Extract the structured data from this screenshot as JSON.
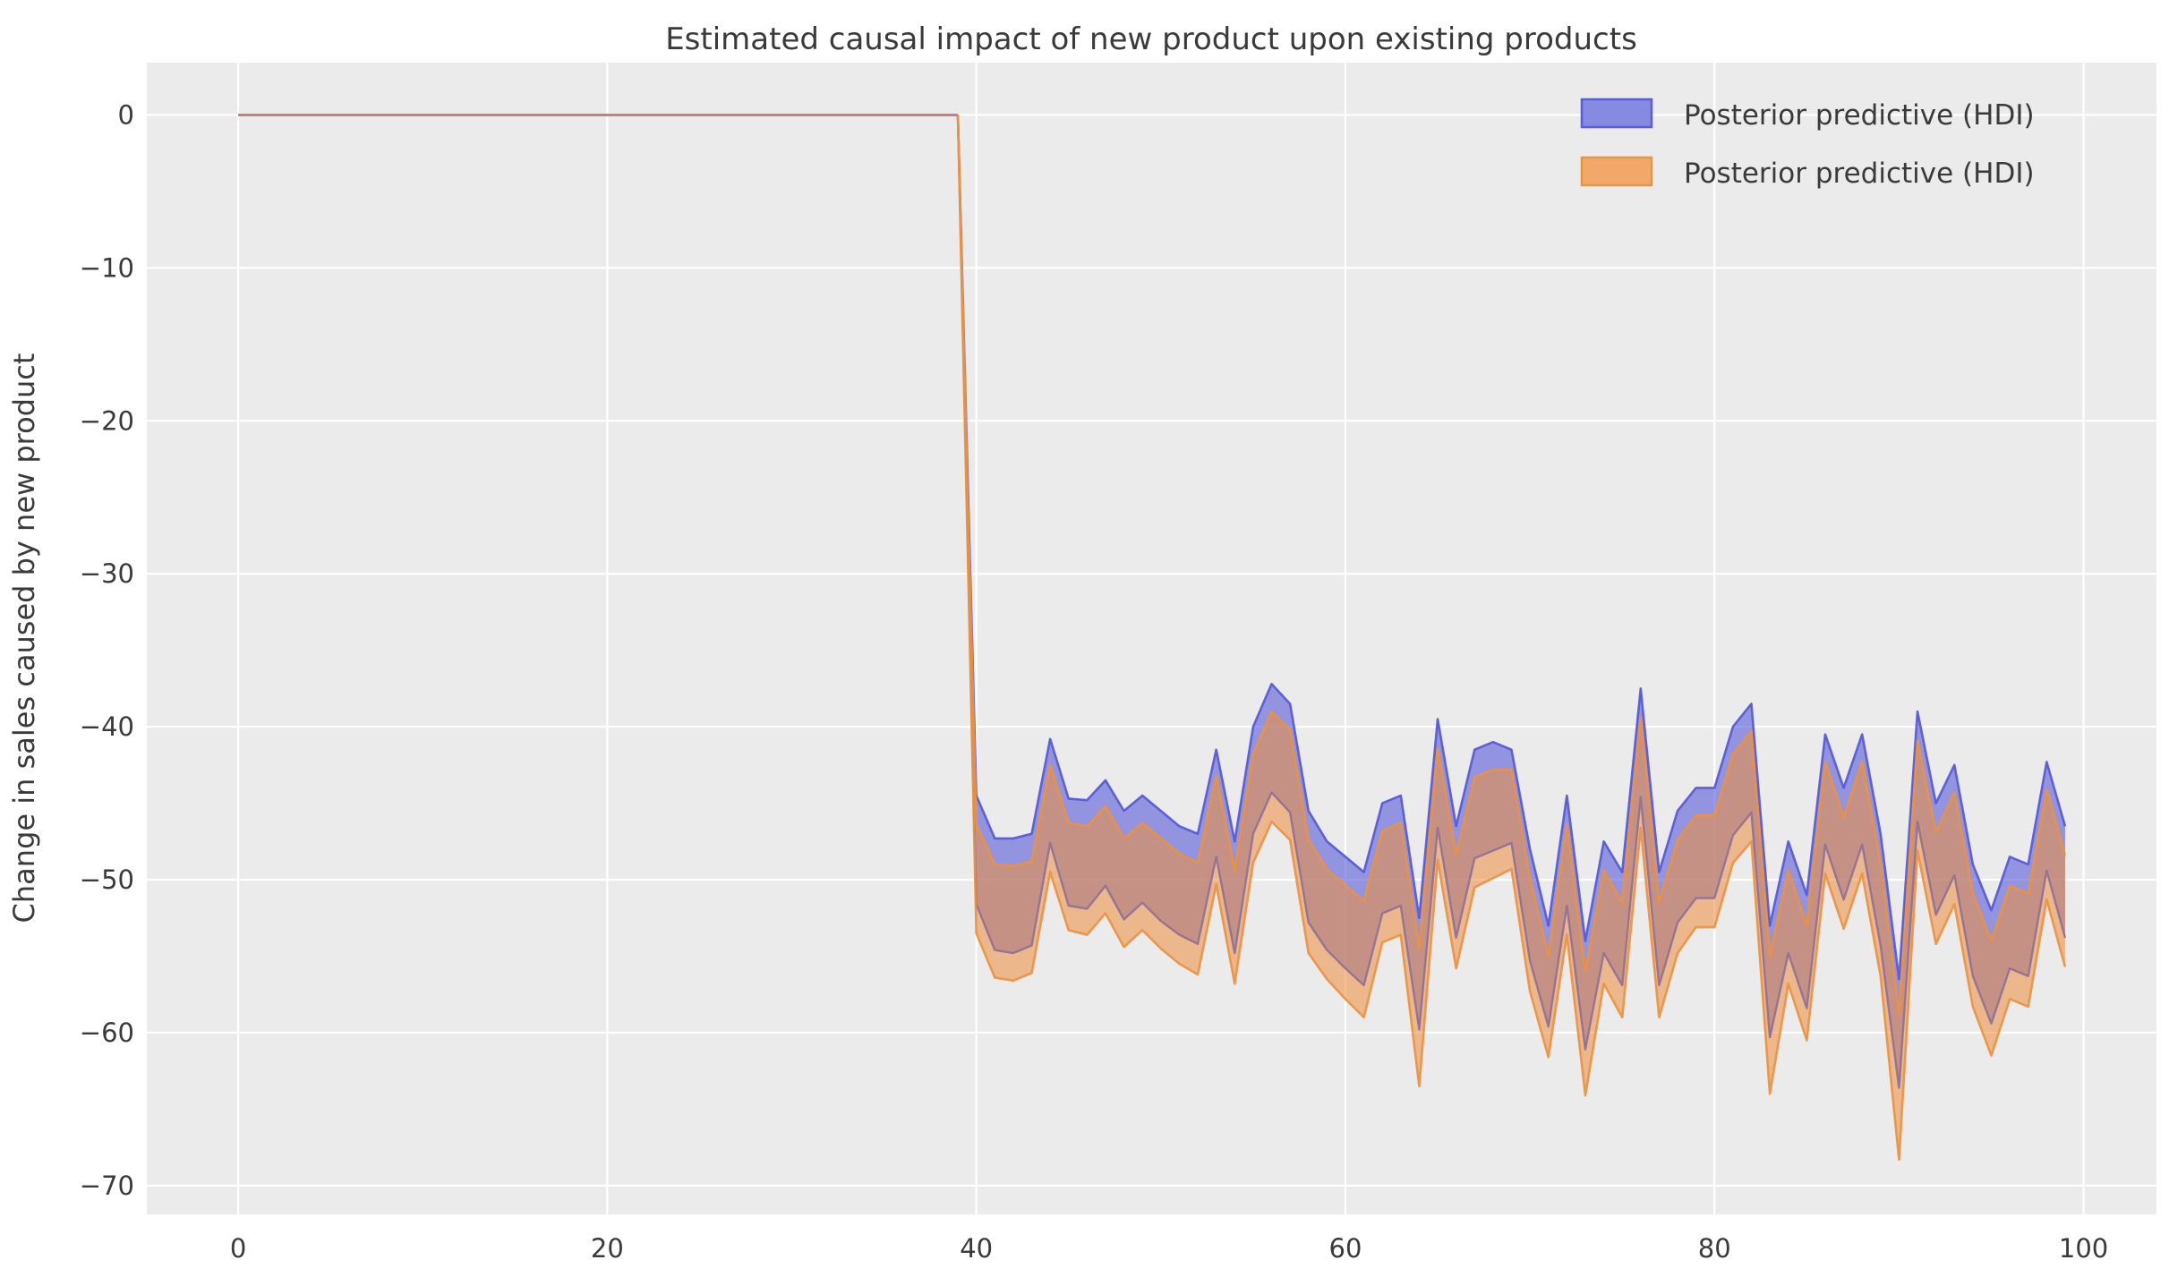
{
  "chart_data": {
    "type": "area",
    "title": "Estimated causal impact of new product upon existing products",
    "ylabel": "Change in sales caused by new product",
    "xlabel": "",
    "x_ticks": [
      0,
      20,
      40,
      60,
      80,
      100
    ],
    "y_ticks": [
      0,
      -10,
      -20,
      -30,
      -40,
      -50,
      -60,
      -70
    ],
    "xlim": [
      -4.95,
      103.95
    ],
    "ylim": [
      -71.88,
      3.42
    ],
    "grid": true,
    "plot_background": "#ebebeb",
    "grid_color": "#ffffff",
    "text_color": "#3a3a3a",
    "legend": {
      "position": "upper right",
      "entries": [
        {
          "label": "Posterior predictive (HDI)",
          "fill": "#868ae1",
          "edge": "#5a5cd8"
        },
        {
          "label": "Posterior predictive (HDI)",
          "fill": "#f2a869",
          "edge": "#e8953f"
        }
      ]
    },
    "pre_period": {
      "x_start": 0,
      "x_end": 39,
      "y": 0,
      "color": "#c5807f"
    },
    "series": {
      "x": [
        39,
        40,
        41,
        42,
        43,
        44,
        45,
        46,
        47,
        48,
        49,
        50,
        51,
        52,
        53,
        54,
        55,
        56,
        57,
        58,
        59,
        60,
        61,
        62,
        63,
        64,
        65,
        66,
        67,
        68,
        69,
        70,
        71,
        72,
        73,
        74,
        75,
        76,
        77,
        78,
        79,
        80,
        81,
        82,
        83,
        84,
        85,
        86,
        87,
        88,
        89,
        90,
        91,
        92,
        93,
        94,
        95,
        96,
        97,
        98,
        99
      ],
      "blue_hdi": {
        "name": "Posterior predictive (HDI)",
        "fill": "#5e60d8",
        "fill_opacity": 0.62,
        "edge_upper_color": "#5558d6",
        "edge_lower_color": "#8f6f96",
        "upper": [
          0,
          -44.5,
          -47.3,
          -47.3,
          -47,
          -40.8,
          -44.7,
          -44.8,
          -43.5,
          -45.5,
          -44.5,
          -45.5,
          -46.5,
          -47,
          -41.5,
          -47.5,
          -40,
          -37.2,
          -38.5,
          -45.5,
          -47.5,
          -48.5,
          -49.5,
          -45,
          -44.5,
          -52.5,
          -39.5,
          -46.5,
          -41.5,
          -41,
          -41.5,
          -48,
          -53,
          -44.5,
          -54,
          -47.5,
          -49.5,
          -37.5,
          -49.5,
          -45.5,
          -44,
          -44,
          -40,
          -38.5,
          -53,
          -47.5,
          -51,
          -40.5,
          -44,
          -40.5,
          -47,
          -56.5,
          -39,
          -45,
          -42.5,
          -49,
          -52,
          -48.5,
          -49,
          -42.3,
          -46.5
        ],
        "lower": [
          0,
          -51.6,
          -54.6,
          -54.8,
          -54.3,
          -47.6,
          -51.7,
          -51.9,
          -50.4,
          -52.6,
          -51.5,
          -52.7,
          -53.6,
          -54.2,
          -48.5,
          -54.8,
          -47,
          -44.3,
          -45.6,
          -52.8,
          -54.6,
          -55.8,
          -56.9,
          -52.2,
          -51.7,
          -59.8,
          -46.6,
          -53.8,
          -48.6,
          -48.1,
          -47.6,
          -55.3,
          -59.6,
          -51.7,
          -61.1,
          -54.8,
          -56.9,
          -44.6,
          -56.9,
          -52.8,
          -51.2,
          -51.2,
          -47.1,
          -45.6,
          -60.3,
          -54.8,
          -58.4,
          -47.7,
          -51.3,
          -47.7,
          -54.3,
          -63.6,
          -46.2,
          -52.3,
          -49.7,
          -56.3,
          -59.4,
          -55.8,
          -56.3,
          -49.4,
          -53.8
        ]
      },
      "orange_hdi": {
        "name": "Posterior predictive (HDI)",
        "fill": "#ed8f3e",
        "fill_opacity": 0.56,
        "edge_color": "#ec9140",
        "upper": [
          0,
          -46.4,
          -49,
          -49.1,
          -48.8,
          -42.5,
          -46.3,
          -46.5,
          -45.2,
          -47.3,
          -46.3,
          -47.3,
          -48.3,
          -48.9,
          -43.2,
          -49.4,
          -41.8,
          -39,
          -40.2,
          -47.4,
          -49.3,
          -50.4,
          -51.4,
          -46.8,
          -46.3,
          -54.5,
          -41.4,
          -48.4,
          -43.3,
          -42.8,
          -42.8,
          -49.9,
          -55,
          -46.4,
          -56,
          -49.4,
          -51.5,
          -39.4,
          -51.5,
          -47.4,
          -45.8,
          -45.8,
          -41.8,
          -40.3,
          -55,
          -49.4,
          -53,
          -42.3,
          -45.9,
          -42.3,
          -48.9,
          -58.8,
          -40.9,
          -46.9,
          -44.3,
          -50.9,
          -54,
          -50.4,
          -50.9,
          -44.1,
          -48.4
        ],
        "lower": [
          0,
          -53.5,
          -56.4,
          -56.6,
          -56.1,
          -49.5,
          -53.3,
          -53.6,
          -52.2,
          -54.4,
          -53.3,
          -54.5,
          -55.5,
          -56.2,
          -50.3,
          -56.8,
          -48.9,
          -46.2,
          -47.4,
          -54.8,
          -56.5,
          -57.8,
          -59,
          -54.1,
          -53.6,
          -63.5,
          -48.7,
          -55.8,
          -50.5,
          -49.9,
          -49.3,
          -57.3,
          -61.6,
          -53.6,
          -64.1,
          -56.8,
          -59,
          -46.6,
          -59,
          -54.8,
          -53.1,
          -53.1,
          -48.9,
          -47.5,
          -64,
          -56.8,
          -60.5,
          -49.6,
          -53.2,
          -49.6,
          -56.3,
          -68.3,
          -48.1,
          -54.2,
          -51.6,
          -58.3,
          -61.5,
          -57.8,
          -58.3,
          -51.3,
          -55.7
        ]
      }
    }
  }
}
